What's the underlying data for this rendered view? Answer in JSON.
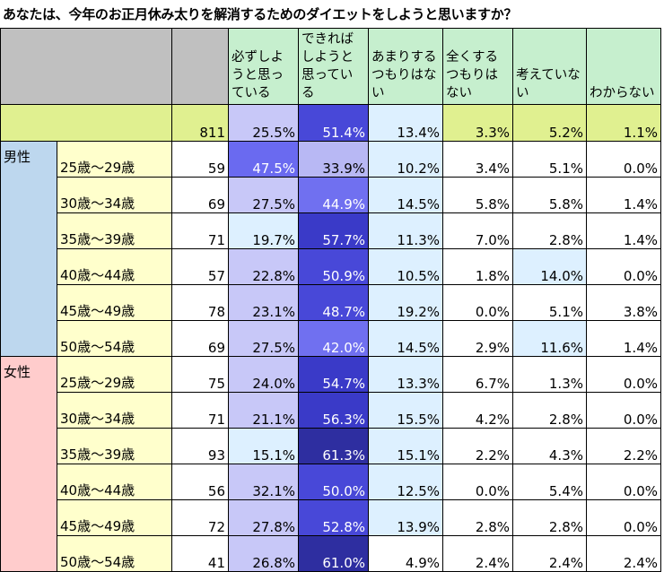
{
  "title": "あなたは、今年のお正月休み太りを解消するためのダイエットをしようと思いますか？",
  "chart_data": {
    "type": "table",
    "columns": [
      "必ずしようと思っている",
      "できればしようと思っている",
      "あまりするつもりはない",
      "全くするつもりはない",
      "考えていない",
      "わからない"
    ],
    "column_lines": [
      [
        "必ずしよう",
        "と思ってい",
        "る"
      ],
      [
        "できればし",
        "ようと思っ",
        "ている"
      ],
      [
        "あまりする",
        "つもりはな",
        "い"
      ],
      [
        "全くするつ",
        "もりはない"
      ],
      [
        "考えてい",
        "ない"
      ],
      [
        "わからない"
      ]
    ],
    "total": {
      "n": "811",
      "values": [
        "25.5%",
        "51.4%",
        "13.4%",
        "3.3%",
        "5.2%",
        "1.1%"
      ]
    },
    "groups": [
      {
        "name": "男性",
        "rows": [
          {
            "age": "25歳～29歳",
            "n": "59",
            "values": [
              "47.5%",
              "33.9%",
              "10.2%",
              "3.4%",
              "5.1%",
              "0.0%"
            ]
          },
          {
            "age": "30歳～34歳",
            "n": "69",
            "values": [
              "27.5%",
              "44.9%",
              "14.5%",
              "5.8%",
              "5.8%",
              "1.4%"
            ]
          },
          {
            "age": "35歳～39歳",
            "n": "71",
            "values": [
              "19.7%",
              "57.7%",
              "11.3%",
              "7.0%",
              "2.8%",
              "1.4%"
            ]
          },
          {
            "age": "40歳～44歳",
            "n": "57",
            "values": [
              "22.8%",
              "50.9%",
              "10.5%",
              "1.8%",
              "14.0%",
              "0.0%"
            ]
          },
          {
            "age": "45歳～49歳",
            "n": "78",
            "values": [
              "23.1%",
              "48.7%",
              "19.2%",
              "0.0%",
              "5.1%",
              "3.8%"
            ]
          },
          {
            "age": "50歳～54歳",
            "n": "69",
            "values": [
              "27.5%",
              "42.0%",
              "14.5%",
              "2.9%",
              "11.6%",
              "1.4%"
            ]
          }
        ]
      },
      {
        "name": "女性",
        "rows": [
          {
            "age": "25歳～29歳",
            "n": "75",
            "values": [
              "24.0%",
              "54.7%",
              "13.3%",
              "6.7%",
              "1.3%",
              "0.0%"
            ]
          },
          {
            "age": "30歳～34歳",
            "n": "71",
            "values": [
              "21.1%",
              "56.3%",
              "15.5%",
              "4.2%",
              "2.8%",
              "0.0%"
            ]
          },
          {
            "age": "35歳～39歳",
            "n": "93",
            "values": [
              "15.1%",
              "61.3%",
              "15.1%",
              "2.2%",
              "4.3%",
              "2.2%"
            ]
          },
          {
            "age": "40歳～44歳",
            "n": "56",
            "values": [
              "32.1%",
              "50.0%",
              "12.5%",
              "0.0%",
              "5.4%",
              "0.0%"
            ]
          },
          {
            "age": "45歳～49歳",
            "n": "72",
            "values": [
              "27.8%",
              "52.8%",
              "13.9%",
              "2.8%",
              "2.8%",
              "0.0%"
            ]
          },
          {
            "age": "50歳～54歳",
            "n": "41",
            "values": [
              "26.8%",
              "61.0%",
              "4.9%",
              "2.4%",
              "2.4%",
              "2.4%"
            ]
          }
        ]
      }
    ],
    "heat_colors": {
      "low": "#ffffff",
      "light": "#ddf0ff",
      "mid": "#c8c8f8",
      "high": "#9090f0",
      "higher": "#5050e0",
      "top": "#3030c0",
      "max": "#3a3aa0"
    },
    "colors": {
      "male": "#bdd7ee",
      "female": "#ffcccc",
      "age_cell": "#ffffcc",
      "header": "#c6efce",
      "total_row": "#e0f090",
      "header_grey": "#c0c0c0"
    }
  }
}
